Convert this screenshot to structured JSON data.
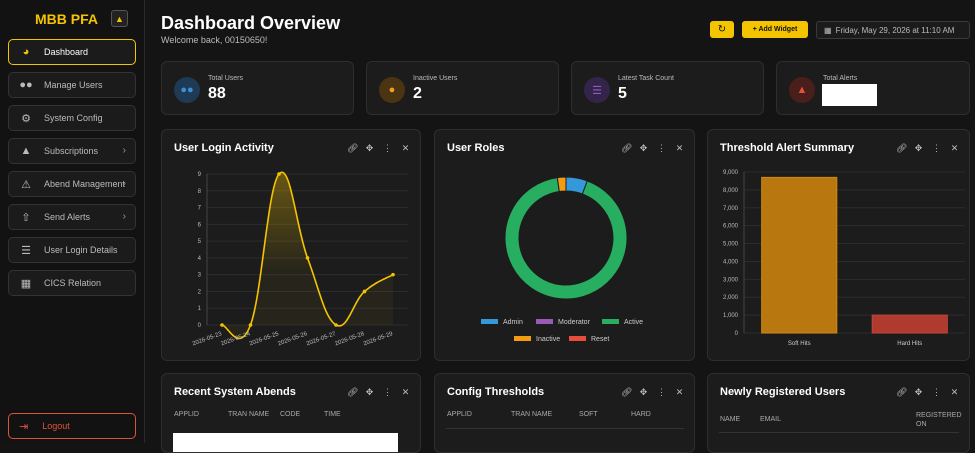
{
  "app": {
    "brand": "MBB PFA"
  },
  "sidebar": {
    "items": [
      {
        "label": "Dashboard",
        "icon": "gauge-icon",
        "active": true
      },
      {
        "label": "Manage Users",
        "icon": "users-icon"
      },
      {
        "label": "System Config",
        "icon": "gears-icon"
      },
      {
        "label": "Subscriptions",
        "icon": "bell-icon",
        "chevron": true
      },
      {
        "label": "Abend Management",
        "icon": "warning-icon",
        "chevron": true
      },
      {
        "label": "Send Alerts",
        "icon": "upload-icon",
        "chevron": true
      },
      {
        "label": "User Login Details",
        "icon": "list-icon"
      },
      {
        "label": "CICS Relation",
        "icon": "sitemap-icon"
      }
    ],
    "logout_label": "Logout"
  },
  "header": {
    "title": "Dashboard Overview",
    "subtitle": "Welcome back, 00150650!",
    "add_widget_label": "+ Add Widget",
    "date": "Friday, May 29, 2026 at 11:10 AM"
  },
  "stats": [
    {
      "label": "Total Users",
      "value": "88",
      "icon": "users-icon",
      "color": "#3b8ed6"
    },
    {
      "label": "Inactive Users",
      "value": "2",
      "icon": "user-clock-icon",
      "color": "#f0a020"
    },
    {
      "label": "Latest Task Count",
      "value": "5",
      "icon": "tasks-icon",
      "color": "#8e5bc4"
    },
    {
      "label": "Total Alerts",
      "value": "",
      "icon": "bell-icon",
      "color": "#e0533a"
    }
  ],
  "cards": {
    "login_activity": {
      "title": "User Login Activity"
    },
    "user_roles": {
      "title": "User Roles"
    },
    "threshold": {
      "title": "Threshold Alert Summary"
    },
    "recent_abends": {
      "title": "Recent System Abends",
      "columns": [
        "APPLID",
        "TRAN NAME",
        "CODE",
        "TIME"
      ]
    },
    "config_thresholds": {
      "title": "Config Thresholds",
      "columns": [
        "APPLID",
        "TRAN NAME",
        "SOFT",
        "HARD"
      ]
    },
    "new_users": {
      "title": "Newly Registered Users",
      "columns": [
        "NAME",
        "EMAIL",
        "REGISTERED ON"
      ]
    }
  },
  "chart_data": [
    {
      "type": "line",
      "title": "User Login Activity",
      "x": [
        "2026-05-23",
        "2026-05-24",
        "2026-05-25",
        "2026-05-26",
        "2026-05-27",
        "2026-05-28",
        "2026-05-29"
      ],
      "series": [
        {
          "values": [
            0,
            0,
            9,
            4,
            0,
            2,
            3
          ],
          "color": "#f5c400"
        }
      ],
      "yticks": [
        "0",
        "1",
        "2",
        "3",
        "4",
        "5",
        "6",
        "7",
        "8",
        "9"
      ],
      "ylim": [
        0,
        9
      ],
      "grid": true
    },
    {
      "type": "pie",
      "title": "User Roles",
      "categories": [
        "Admin",
        "Moderator",
        "Active",
        "Inactive",
        "Reset"
      ],
      "values": [
        5,
        0,
        81,
        2,
        0
      ],
      "colors": [
        "#3498db",
        "#9b59b6",
        "#27ae60",
        "#f39c12",
        "#e74c3c"
      ],
      "legend": "bottom"
    },
    {
      "type": "bar",
      "title": "Threshold Alert Summary",
      "categories": [
        "Soft Hits",
        "Hard Hits"
      ],
      "values": [
        8700,
        1000
      ],
      "colors": [
        "#b8780f",
        "#b03a2e"
      ],
      "yticks": [
        "0",
        "1,000",
        "2,000",
        "3,000",
        "4,000",
        "5,000",
        "6,000",
        "7,000",
        "8,000",
        "9,000"
      ],
      "ylim": [
        0,
        9000
      ],
      "grid": true
    }
  ]
}
